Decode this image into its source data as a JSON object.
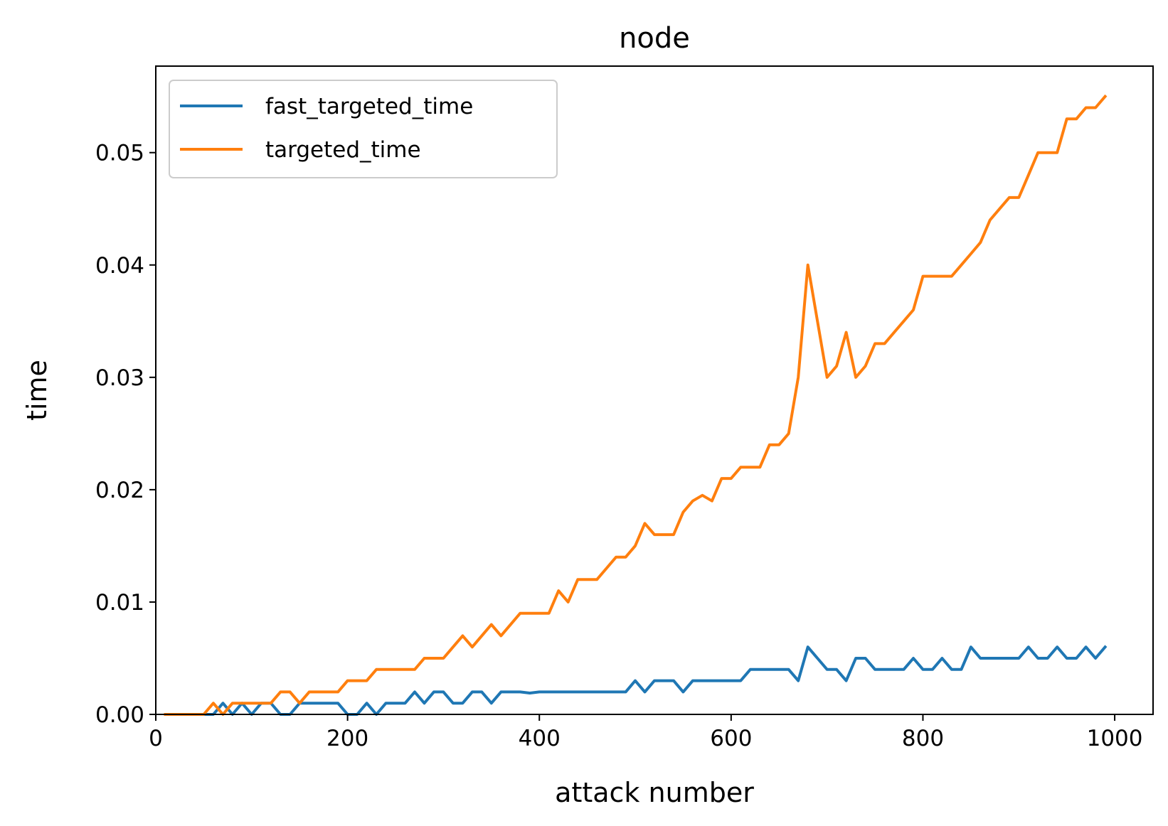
{
  "chart_data": {
    "type": "line",
    "title": "node",
    "xlabel": "attack number",
    "ylabel": "time",
    "xlim": [
      0,
      1040
    ],
    "ylim": [
      0,
      0.0577
    ],
    "xticks": [
      0,
      200,
      400,
      600,
      800,
      1000
    ],
    "yticks": [
      0,
      0.01,
      0.02,
      0.03,
      0.04,
      0.05
    ],
    "xtick_labels": [
      "0",
      "200",
      "400",
      "600",
      "800",
      "1000"
    ],
    "ytick_labels": [
      "0.00",
      "0.01",
      "0.02",
      "0.03",
      "0.04",
      "0.05"
    ],
    "grid": false,
    "legend_position": "top-left",
    "x": [
      10,
      20,
      30,
      40,
      50,
      60,
      70,
      80,
      90,
      100,
      110,
      120,
      130,
      140,
      150,
      160,
      170,
      180,
      190,
      200,
      210,
      220,
      230,
      240,
      250,
      260,
      270,
      280,
      290,
      300,
      310,
      320,
      330,
      340,
      350,
      360,
      370,
      380,
      390,
      400,
      410,
      420,
      430,
      440,
      450,
      460,
      470,
      480,
      490,
      500,
      510,
      520,
      530,
      540,
      550,
      560,
      570,
      580,
      590,
      600,
      610,
      620,
      630,
      640,
      650,
      660,
      670,
      680,
      690,
      700,
      710,
      720,
      730,
      740,
      750,
      760,
      770,
      780,
      790,
      800,
      810,
      820,
      830,
      840,
      850,
      860,
      870,
      880,
      890,
      900,
      910,
      920,
      930,
      940,
      950,
      960,
      970,
      980,
      990
    ],
    "series": [
      {
        "name": "fast_targeted_time",
        "color": "#1f77b4",
        "values": [
          0,
          0,
          0,
          0,
          0,
          0,
          0.001,
          0,
          0.001,
          0,
          0.001,
          0.001,
          0,
          0,
          0.001,
          0.001,
          0.001,
          0.001,
          0.001,
          0,
          0,
          0.001,
          0,
          0.001,
          0.001,
          0.001,
          0.002,
          0.001,
          0.002,
          0.002,
          0.001,
          0.001,
          0.002,
          0.002,
          0.001,
          0.002,
          0.002,
          0.002,
          0.0019,
          0.002,
          0.002,
          0.002,
          0.002,
          0.002,
          0.002,
          0.002,
          0.002,
          0.002,
          0.002,
          0.003,
          0.002,
          0.003,
          0.003,
          0.003,
          0.002,
          0.003,
          0.003,
          0.003,
          0.003,
          0.003,
          0.003,
          0.004,
          0.004,
          0.004,
          0.004,
          0.004,
          0.003,
          0.006,
          0.005,
          0.004,
          0.004,
          0.003,
          0.005,
          0.005,
          0.004,
          0.004,
          0.004,
          0.004,
          0.005,
          0.004,
          0.004,
          0.005,
          0.004,
          0.004,
          0.006,
          0.005,
          0.005,
          0.005,
          0.005,
          0.005,
          0.006,
          0.005,
          0.005,
          0.006,
          0.005,
          0.005,
          0.006,
          0.005,
          0.006
        ]
      },
      {
        "name": "targeted_time",
        "color": "#ff7f0e",
        "values": [
          0,
          0,
          0,
          0,
          0,
          0.001,
          0,
          0.001,
          0.001,
          0.001,
          0.001,
          0.001,
          0.002,
          0.002,
          0.001,
          0.002,
          0.002,
          0.002,
          0.002,
          0.003,
          0.003,
          0.003,
          0.004,
          0.004,
          0.004,
          0.004,
          0.004,
          0.005,
          0.005,
          0.005,
          0.006,
          0.007,
          0.006,
          0.007,
          0.008,
          0.007,
          0.008,
          0.009,
          0.009,
          0.009,
          0.009,
          0.011,
          0.01,
          0.012,
          0.012,
          0.012,
          0.013,
          0.014,
          0.014,
          0.015,
          0.017,
          0.016,
          0.016,
          0.016,
          0.018,
          0.019,
          0.0195,
          0.019,
          0.021,
          0.021,
          0.022,
          0.022,
          0.022,
          0.024,
          0.024,
          0.025,
          0.03,
          0.04,
          0.035,
          0.03,
          0.031,
          0.034,
          0.03,
          0.031,
          0.033,
          0.033,
          0.034,
          0.035,
          0.036,
          0.039,
          0.039,
          0.039,
          0.039,
          0.04,
          0.041,
          0.042,
          0.044,
          0.045,
          0.046,
          0.046,
          0.048,
          0.05,
          0.05,
          0.05,
          0.053,
          0.053,
          0.054,
          0.054,
          0.055
        ]
      }
    ]
  }
}
